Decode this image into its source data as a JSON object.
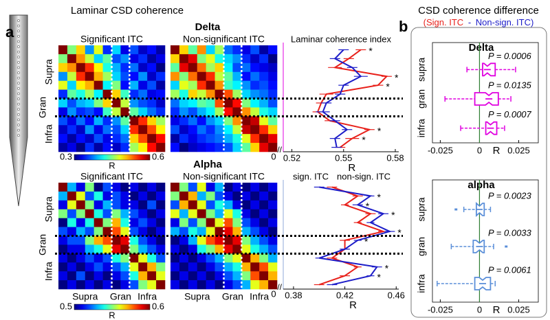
{
  "title": "Laminar CSD coherence",
  "panel_a_label": "a",
  "panel_b_label": "b",
  "layer_labels": [
    "Supra",
    "Gran",
    "Infra"
  ],
  "sections": [
    {
      "title": "Delta",
      "show_x_layer_labels": false,
      "heatmaps": [
        {
          "title": "Significant ITC",
          "color": "#e8201a",
          "matrix": [
            [
              0.6,
              0.45,
              0.5,
              0.38,
              0.48,
              0.35,
              0.4,
              0.33,
              0.36,
              0.32,
              0.34,
              0.31
            ],
            [
              0.45,
              0.6,
              0.52,
              0.47,
              0.4,
              0.44,
              0.36,
              0.38,
              0.33,
              0.35,
              0.31,
              0.33
            ],
            [
              0.5,
              0.52,
              0.6,
              0.55,
              0.49,
              0.42,
              0.39,
              0.35,
              0.37,
              0.32,
              0.34,
              0.3
            ],
            [
              0.38,
              0.47,
              0.55,
              0.6,
              0.51,
              0.46,
              0.4,
              0.36,
              0.34,
              0.38,
              0.32,
              0.35
            ],
            [
              0.48,
              0.4,
              0.49,
              0.51,
              0.6,
              0.41,
              0.45,
              0.34,
              0.39,
              0.33,
              0.36,
              0.31
            ],
            [
              0.35,
              0.44,
              0.42,
              0.46,
              0.41,
              0.6,
              0.5,
              0.43,
              0.35,
              0.37,
              0.33,
              0.34
            ],
            [
              0.4,
              0.36,
              0.39,
              0.4,
              0.45,
              0.5,
              0.6,
              0.47,
              0.38,
              0.36,
              0.35,
              0.32
            ],
            [
              0.33,
              0.38,
              0.35,
              0.36,
              0.34,
              0.43,
              0.47,
              0.6,
              0.44,
              0.4,
              0.37,
              0.35
            ],
            [
              0.36,
              0.33,
              0.37,
              0.34,
              0.39,
              0.35,
              0.38,
              0.44,
              0.6,
              0.55,
              0.5,
              0.46
            ],
            [
              0.32,
              0.35,
              0.32,
              0.38,
              0.33,
              0.37,
              0.36,
              0.4,
              0.55,
              0.6,
              0.54,
              0.49
            ],
            [
              0.34,
              0.31,
              0.34,
              0.32,
              0.36,
              0.33,
              0.35,
              0.37,
              0.5,
              0.54,
              0.6,
              0.56
            ],
            [
              0.31,
              0.33,
              0.3,
              0.35,
              0.31,
              0.34,
              0.32,
              0.35,
              0.46,
              0.49,
              0.56,
              0.6
            ]
          ]
        },
        {
          "title": "Non-significant ITC",
          "color": "#1c1cc8",
          "matrix": [
            [
              0.6,
              0.5,
              0.44,
              0.52,
              0.4,
              0.46,
              0.37,
              0.35,
              0.33,
              0.36,
              0.31,
              0.34
            ],
            [
              0.5,
              0.6,
              0.57,
              0.45,
              0.48,
              0.42,
              0.4,
              0.38,
              0.35,
              0.32,
              0.35,
              0.3
            ],
            [
              0.44,
              0.57,
              0.6,
              0.53,
              0.46,
              0.5,
              0.41,
              0.36,
              0.37,
              0.34,
              0.33,
              0.32
            ],
            [
              0.52,
              0.45,
              0.53,
              0.6,
              0.55,
              0.47,
              0.44,
              0.39,
              0.34,
              0.37,
              0.35,
              0.33
            ],
            [
              0.4,
              0.48,
              0.46,
              0.55,
              0.6,
              0.52,
              0.43,
              0.41,
              0.38,
              0.35,
              0.36,
              0.34
            ],
            [
              0.46,
              0.42,
              0.5,
              0.47,
              0.52,
              0.6,
              0.54,
              0.46,
              0.4,
              0.38,
              0.37,
              0.35
            ],
            [
              0.37,
              0.4,
              0.41,
              0.44,
              0.43,
              0.54,
              0.6,
              0.56,
              0.45,
              0.41,
              0.39,
              0.36
            ],
            [
              0.35,
              0.38,
              0.36,
              0.39,
              0.41,
              0.46,
              0.56,
              0.6,
              0.52,
              0.47,
              0.42,
              0.4
            ],
            [
              0.33,
              0.35,
              0.37,
              0.34,
              0.38,
              0.4,
              0.45,
              0.52,
              0.6,
              0.58,
              0.48,
              0.44
            ],
            [
              0.36,
              0.32,
              0.34,
              0.37,
              0.35,
              0.38,
              0.41,
              0.47,
              0.58,
              0.6,
              0.55,
              0.5
            ],
            [
              0.31,
              0.35,
              0.33,
              0.35,
              0.36,
              0.37,
              0.39,
              0.42,
              0.48,
              0.55,
              0.6,
              0.57
            ],
            [
              0.34,
              0.3,
              0.32,
              0.33,
              0.34,
              0.35,
              0.36,
              0.4,
              0.44,
              0.5,
              0.57,
              0.6
            ]
          ]
        }
      ],
      "colorbar": {
        "clim": [
          0.3,
          0.6
        ],
        "ticks": [
          0.3,
          0.6
        ],
        "label": "R"
      },
      "profile": {
        "title": "Laminar coherence index",
        "xlim": [
          0.515,
          0.582
        ],
        "xticks": [
          0.52,
          0.55,
          0.58
        ],
        "xlabel": "R",
        "break_label": "0",
        "axis_color": "#e000e0",
        "series": [
          {
            "color": "#e8201a",
            "values": [
              0.56,
              0.553,
              0.545,
              0.575,
              0.57,
              0.54,
              0.537,
              0.535,
              0.542,
              0.565,
              0.555,
              0.548
            ],
            "errors": [
              0.003,
              0.003,
              0.004,
              0.003,
              0.003,
              0.004,
              0.003,
              0.003,
              0.003,
              0.003,
              0.004,
              0.003
            ]
          },
          {
            "color": "#1c1cc8",
            "values": [
              0.55,
              0.545,
              0.555,
              0.56,
              0.55,
              0.548,
              0.54,
              0.538,
              0.545,
              0.552,
              0.545,
              0.546
            ],
            "errors": [
              0.003,
              0.003,
              0.003,
              0.004,
              0.003,
              0.003,
              0.003,
              0.004,
              0.003,
              0.003,
              0.003,
              0.003
            ]
          }
        ],
        "stars": [
          "*",
          null,
          null,
          "*",
          "*",
          null,
          null,
          null,
          null,
          "*",
          "*",
          null
        ]
      }
    },
    {
      "title": "Alpha",
      "show_x_layer_labels": true,
      "heatmaps": [
        {
          "title": "Significant ITC",
          "color": "#e8201a",
          "matrix": [
            [
              0.6,
              0.53,
              0.51,
              0.55,
              0.5,
              0.52,
              0.51,
              0.5,
              0.51,
              0.5,
              0.51,
              0.5
            ],
            [
              0.53,
              0.6,
              0.56,
              0.52,
              0.54,
              0.51,
              0.52,
              0.51,
              0.5,
              0.51,
              0.5,
              0.51
            ],
            [
              0.51,
              0.56,
              0.6,
              0.55,
              0.51,
              0.53,
              0.52,
              0.51,
              0.51,
              0.5,
              0.52,
              0.5
            ],
            [
              0.55,
              0.52,
              0.55,
              0.6,
              0.54,
              0.52,
              0.55,
              0.53,
              0.52,
              0.51,
              0.5,
              0.51
            ],
            [
              0.5,
              0.54,
              0.51,
              0.54,
              0.6,
              0.55,
              0.57,
              0.54,
              0.51,
              0.52,
              0.51,
              0.5
            ],
            [
              0.52,
              0.51,
              0.53,
              0.52,
              0.55,
              0.6,
              0.58,
              0.56,
              0.52,
              0.51,
              0.5,
              0.51
            ],
            [
              0.51,
              0.52,
              0.52,
              0.55,
              0.57,
              0.58,
              0.6,
              0.59,
              0.54,
              0.52,
              0.51,
              0.5
            ],
            [
              0.5,
              0.51,
              0.51,
              0.53,
              0.54,
              0.56,
              0.59,
              0.6,
              0.55,
              0.53,
              0.52,
              0.51
            ],
            [
              0.51,
              0.5,
              0.51,
              0.52,
              0.51,
              0.52,
              0.54,
              0.55,
              0.6,
              0.56,
              0.54,
              0.52
            ],
            [
              0.5,
              0.51,
              0.5,
              0.51,
              0.52,
              0.51,
              0.52,
              0.53,
              0.56,
              0.6,
              0.57,
              0.55
            ],
            [
              0.51,
              0.5,
              0.52,
              0.5,
              0.51,
              0.5,
              0.51,
              0.52,
              0.54,
              0.57,
              0.6,
              0.56
            ],
            [
              0.5,
              0.51,
              0.5,
              0.51,
              0.5,
              0.51,
              0.5,
              0.51,
              0.52,
              0.55,
              0.56,
              0.6
            ]
          ]
        },
        {
          "title": "Non-significant ITC",
          "color": "#1c1cc8",
          "matrix": [
            [
              0.6,
              0.55,
              0.52,
              0.56,
              0.51,
              0.53,
              0.5,
              0.51,
              0.5,
              0.51,
              0.5,
              0.51
            ],
            [
              0.55,
              0.6,
              0.57,
              0.53,
              0.55,
              0.52,
              0.51,
              0.5,
              0.51,
              0.5,
              0.51,
              0.5
            ],
            [
              0.52,
              0.57,
              0.6,
              0.56,
              0.52,
              0.54,
              0.53,
              0.51,
              0.5,
              0.51,
              0.5,
              0.51
            ],
            [
              0.56,
              0.53,
              0.56,
              0.6,
              0.55,
              0.53,
              0.56,
              0.54,
              0.51,
              0.5,
              0.51,
              0.5
            ],
            [
              0.51,
              0.55,
              0.52,
              0.55,
              0.6,
              0.56,
              0.58,
              0.55,
              0.52,
              0.51,
              0.5,
              0.51
            ],
            [
              0.53,
              0.52,
              0.54,
              0.53,
              0.56,
              0.6,
              0.59,
              0.57,
              0.53,
              0.52,
              0.51,
              0.5
            ],
            [
              0.5,
              0.51,
              0.53,
              0.56,
              0.58,
              0.59,
              0.6,
              0.59,
              0.55,
              0.53,
              0.52,
              0.51
            ],
            [
              0.51,
              0.5,
              0.51,
              0.54,
              0.55,
              0.57,
              0.59,
              0.6,
              0.56,
              0.54,
              0.53,
              0.52
            ],
            [
              0.5,
              0.51,
              0.5,
              0.51,
              0.52,
              0.53,
              0.55,
              0.56,
              0.6,
              0.57,
              0.55,
              0.53
            ],
            [
              0.51,
              0.5,
              0.51,
              0.5,
              0.51,
              0.52,
              0.53,
              0.54,
              0.57,
              0.6,
              0.58,
              0.56
            ],
            [
              0.5,
              0.51,
              0.5,
              0.51,
              0.5,
              0.51,
              0.52,
              0.53,
              0.55,
              0.58,
              0.6,
              0.57
            ],
            [
              0.51,
              0.5,
              0.51,
              0.5,
              0.51,
              0.5,
              0.51,
              0.52,
              0.53,
              0.56,
              0.57,
              0.6
            ]
          ]
        }
      ],
      "colorbar": {
        "clim": [
          0.5,
          0.6
        ],
        "ticks": [
          0.5,
          0.6
        ],
        "label": "R"
      },
      "profile": {
        "xlim": [
          0.372,
          0.462
        ],
        "xticks": [
          0.38,
          0.42,
          0.46
        ],
        "xlabel": "R",
        "break_label": "0",
        "axis_color": "#8fa8d8",
        "series": [
          {
            "name": "sign. ITC",
            "color": "#e8201a",
            "values": [
              0.41,
              0.43,
              0.42,
              0.44,
              0.43,
              0.45,
              0.42,
              0.42,
              0.41,
              0.43,
              0.42,
              0.4
            ],
            "errors": [
              0.004,
              0.004,
              0.003,
              0.004,
              0.003,
              0.004,
              0.004,
              0.003,
              0.004,
              0.003,
              0.004,
              0.004
            ]
          },
          {
            "name": "non-sign. ITC",
            "color": "#1c1cc8",
            "values": [
              0.4,
              0.44,
              0.43,
              0.45,
              0.44,
              0.455,
              0.43,
              0.42,
              0.4,
              0.445,
              0.44,
              0.41
            ],
            "errors": [
              0.004,
              0.003,
              0.004,
              0.004,
              0.003,
              0.004,
              0.003,
              0.004,
              0.003,
              0.004,
              0.003,
              0.004
            ]
          }
        ],
        "stars": [
          null,
          "*",
          "*",
          "*",
          null,
          "*",
          "*",
          null,
          null,
          "*",
          "*",
          null
        ]
      }
    }
  ],
  "panel_b": {
    "title": "CSD coherence difference",
    "subtitle_parts": [
      "(Sign. ITC",
      "-",
      "Non-sign. ITC)"
    ],
    "subtitle_colors": [
      "#e8201a",
      "#1c1cc8",
      "#1c1cc8"
    ],
    "plots": [
      {
        "title": "Delta",
        "color": "#e000e0",
        "xlim": [
          -0.03,
          0.0375
        ],
        "xticks": [
          -0.025,
          0,
          0.025
        ],
        "xlabel": "R",
        "groups": [
          {
            "name": "supra",
            "p_label": "P = 0.0006",
            "whisker_low": -0.008,
            "q1": 0.002,
            "median": 0.005,
            "q3": 0.01,
            "whisker_high": 0.023,
            "outliers": []
          },
          {
            "name": "gran",
            "p_label": "P = 0.0135",
            "whisker_low": -0.022,
            "q1": -0.003,
            "median": 0.006,
            "q3": 0.012,
            "whisker_high": 0.02,
            "outliers": []
          },
          {
            "name": "infra",
            "p_label": "P = 0.0007",
            "whisker_low": -0.012,
            "q1": 0.004,
            "median": 0.007,
            "q3": 0.011,
            "whisker_high": 0.016,
            "outliers": []
          }
        ]
      },
      {
        "title": "alpha",
        "color": "#5b8fd9",
        "xlim": [
          -0.03,
          0.0375
        ],
        "xticks": [
          -0.025,
          0,
          0.025
        ],
        "xlabel": "R",
        "groups": [
          {
            "name": "supra",
            "p_label": "P = 0.0023",
            "whisker_low": -0.01,
            "q1": -0.002,
            "median": 0.0,
            "q3": 0.003,
            "whisker_high": 0.007,
            "outliers": [
              -0.015
            ]
          },
          {
            "name": "gran",
            "p_label": "P = 0.0033",
            "whisker_low": -0.018,
            "q1": -0.004,
            "median": 0.0,
            "q3": 0.003,
            "whisker_high": 0.009,
            "outliers": [
              0.017
            ]
          },
          {
            "name": "infra",
            "p_label": "P = 0.0061",
            "whisker_low": -0.027,
            "q1": -0.003,
            "median": 0.002,
            "q3": 0.007,
            "whisker_high": 0.01,
            "outliers": []
          }
        ]
      }
    ]
  }
}
